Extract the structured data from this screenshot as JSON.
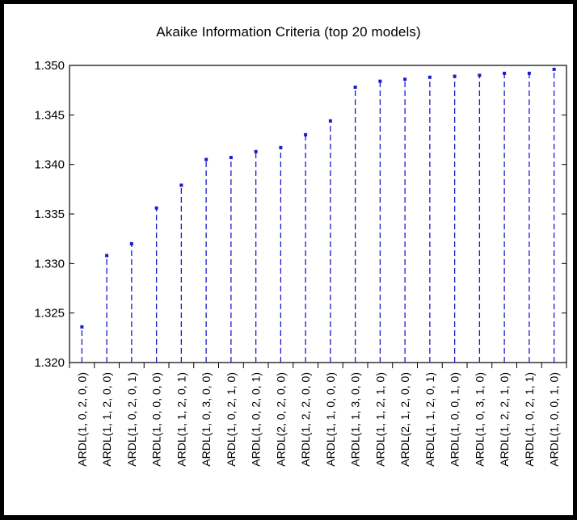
{
  "chart_data": {
    "type": "scatter",
    "title": "Akaike Information Criteria (top 20 models)",
    "xlabel": "",
    "ylabel": "",
    "ylim": [
      1.32,
      1.35
    ],
    "yticks": [
      "1.320",
      "1.325",
      "1.330",
      "1.335",
      "1.340",
      "1.345",
      "1.350"
    ],
    "categories": [
      "ARDL(1, 0, 2, 0, 0)",
      "ARDL(1, 1, 2, 0, 0)",
      "ARDL(1, 0, 2, 0, 1)",
      "ARDL(1, 0, 0, 0, 0)",
      "ARDL(1, 1, 2, 0, 1)",
      "ARDL(1, 0, 3, 0, 0)",
      "ARDL(1, 0, 2, 1, 0)",
      "ARDL(1, 0, 2, 0, 1)",
      "ARDL(2, 0, 2, 0, 0)",
      "ARDL(1, 2, 2, 0, 0)",
      "ARDL(1, 1, 0, 0, 0)",
      "ARDL(1, 1, 3, 0, 0)",
      "ARDL(1, 1, 2, 1, 0)",
      "ARDL(2, 1, 2, 0, 0)",
      "ARDL(1, 1, 2, 0, 1)",
      "ARDL(1, 0, 0, 1, 0)",
      "ARDL(1, 0, 3, 1, 0)",
      "ARDL(1, 2, 2, 1, 0)",
      "ARDL(1, 0, 2, 1, 1)",
      "ARDL(1, 0, 0, 1, 0)"
    ],
    "values": [
      1.3236,
      1.3308,
      1.332,
      1.3356,
      1.3379,
      1.3405,
      1.3407,
      1.3413,
      1.3417,
      1.343,
      1.3444,
      1.3478,
      1.3484,
      1.3486,
      1.3488,
      1.3489,
      1.349,
      1.3492,
      1.3492,
      1.3496
    ],
    "style": "dropline",
    "color": "#1a1acd",
    "grid": false,
    "legend": "none"
  }
}
